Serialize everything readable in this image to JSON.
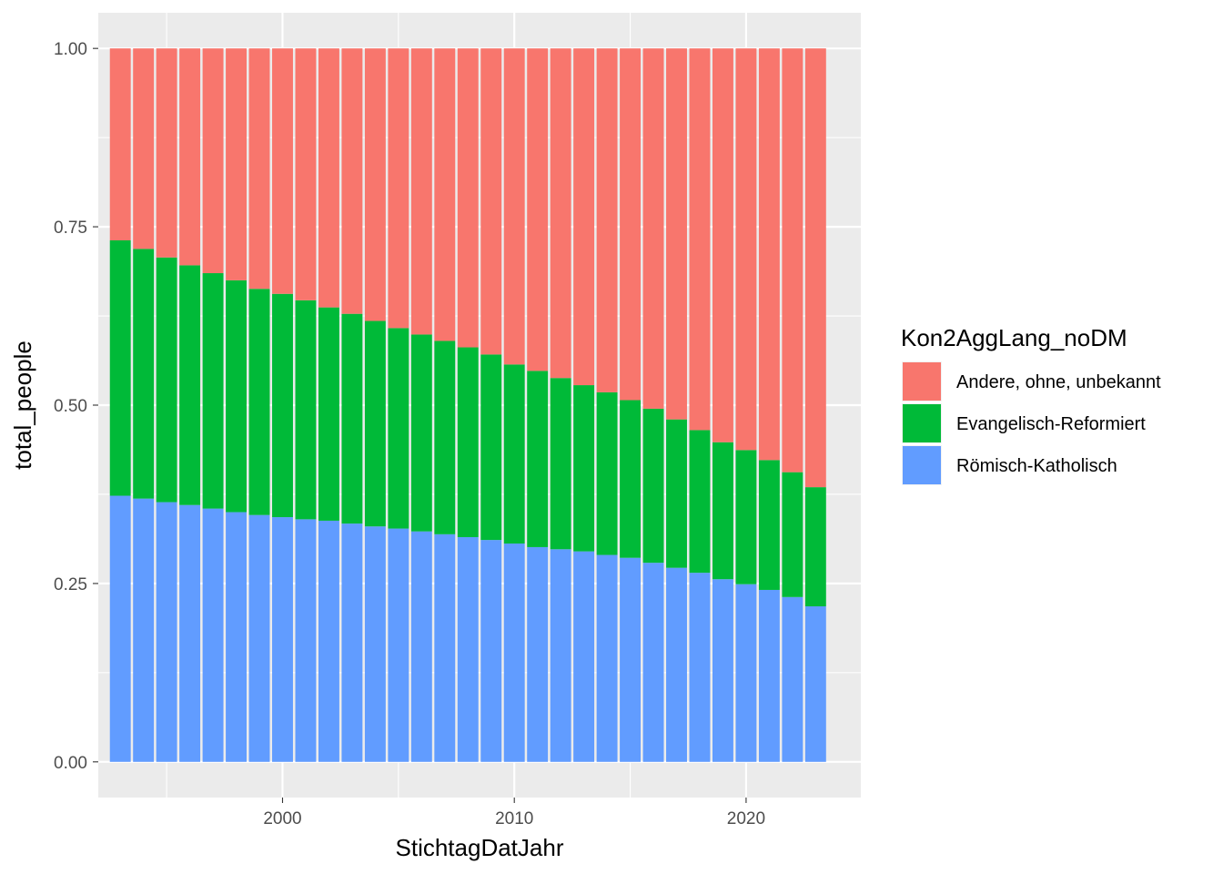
{
  "chart_data": {
    "type": "bar",
    "stacked": true,
    "x": [
      1993,
      1994,
      1995,
      1996,
      1997,
      1998,
      1999,
      2000,
      2001,
      2002,
      2003,
      2004,
      2005,
      2006,
      2007,
      2008,
      2009,
      2010,
      2011,
      2012,
      2013,
      2014,
      2015,
      2016,
      2017,
      2018,
      2019,
      2020,
      2021,
      2022,
      2023
    ],
    "x_ticks": [
      2000,
      2010,
      2020
    ],
    "x_tick_labels": [
      "2000",
      "2010",
      "2020"
    ],
    "xlim": [
      1992.05,
      2024.95
    ],
    "xlabel": "StichtagDatJahr",
    "ylabel": "total_people",
    "y_ticks": [
      0,
      0.25,
      0.5,
      0.75,
      1
    ],
    "y_tick_labels": [
      "0.00",
      "0.25",
      "0.50",
      "0.75",
      "1.00"
    ],
    "ylim": [
      -0.05,
      1.05
    ],
    "legend_title": "Kon2AggLang_noDM",
    "legend_position": "right",
    "grid": true,
    "series": [
      {
        "name": "Römisch-Katholisch",
        "color": "#619CFF",
        "values": [
          0.373,
          0.369,
          0.364,
          0.36,
          0.355,
          0.35,
          0.346,
          0.343,
          0.34,
          0.338,
          0.334,
          0.33,
          0.327,
          0.323,
          0.319,
          0.315,
          0.311,
          0.306,
          0.301,
          0.298,
          0.295,
          0.29,
          0.286,
          0.279,
          0.272,
          0.265,
          0.256,
          0.249,
          0.241,
          0.231,
          0.218
        ]
      },
      {
        "name": "Evangelisch-Reformiert",
        "color": "#00BA38",
        "values": [
          0.358,
          0.35,
          0.343,
          0.336,
          0.33,
          0.325,
          0.317,
          0.313,
          0.307,
          0.299,
          0.294,
          0.288,
          0.281,
          0.276,
          0.271,
          0.266,
          0.26,
          0.251,
          0.247,
          0.24,
          0.233,
          0.228,
          0.221,
          0.216,
          0.208,
          0.2,
          0.192,
          0.188,
          0.182,
          0.175,
          0.167
        ]
      },
      {
        "name": "Andere, ohne, unbekannt",
        "color": "#F8766D",
        "values": [
          0.269,
          0.281,
          0.293,
          0.304,
          0.315,
          0.325,
          0.337,
          0.344,
          0.353,
          0.363,
          0.372,
          0.382,
          0.392,
          0.401,
          0.41,
          0.419,
          0.429,
          0.443,
          0.452,
          0.462,
          0.472,
          0.482,
          0.493,
          0.505,
          0.52,
          0.535,
          0.552,
          0.563,
          0.577,
          0.594,
          0.615
        ]
      }
    ],
    "legend_order": [
      "Andere, ohne, unbekannt",
      "Evangelisch-Reformiert",
      "Römisch-Katholisch"
    ]
  }
}
